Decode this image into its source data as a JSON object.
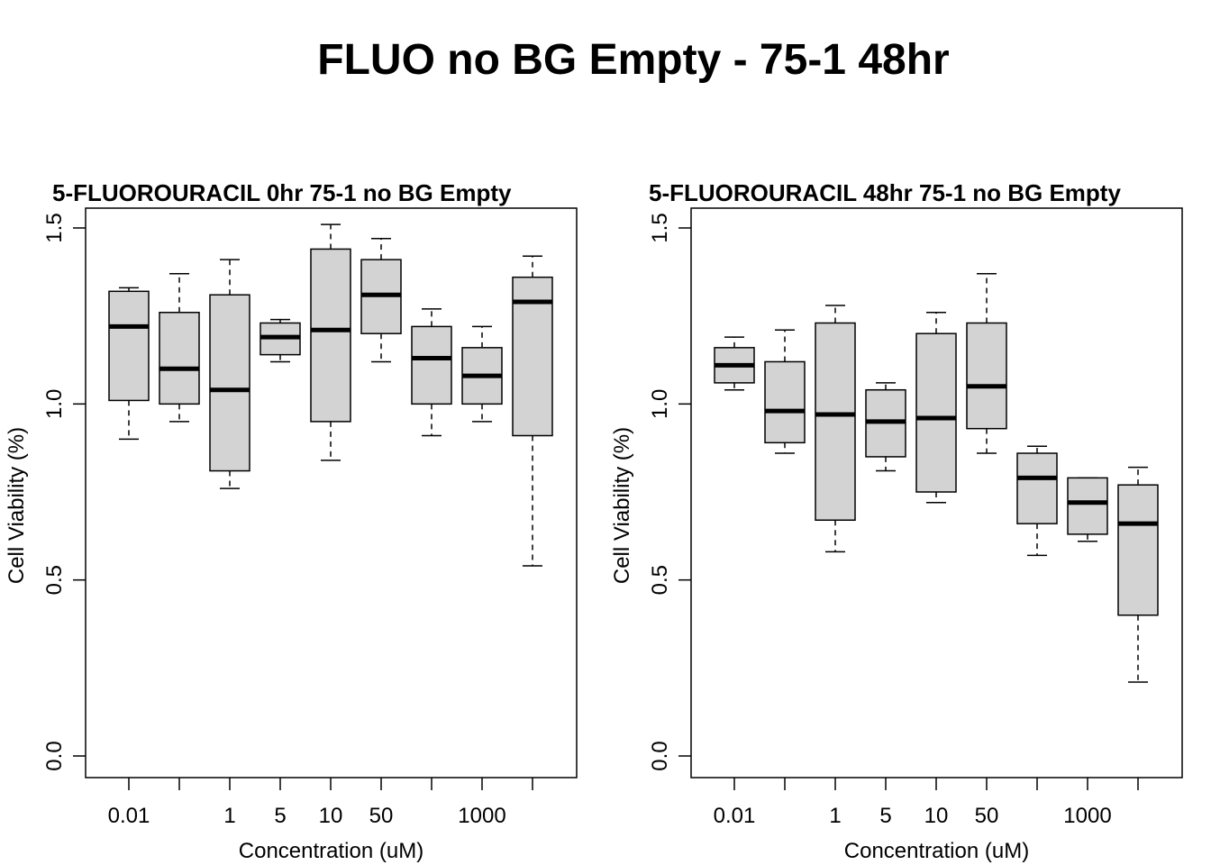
{
  "figure": {
    "title": "FLUO no BG Empty - 75-1 48hr"
  },
  "chart_data": [
    {
      "type": "box",
      "title": "5-FLUOROURACIL 0hr 75-1 no BG Empty",
      "xlabel": "Concentration (uM)",
      "ylabel": "Cell Viability (%)",
      "ylim": [
        0,
        1.5
      ],
      "yticks": [
        "0.0",
        "0.5",
        "1.0",
        "1.5"
      ],
      "categories": [
        "0.01",
        "",
        "1",
        "5",
        "10",
        "50",
        "",
        "1000",
        ""
      ],
      "grid": false,
      "boxes": [
        {
          "whisker_low": 0.9,
          "q1": 1.01,
          "median": 1.22,
          "q3": 1.32,
          "whisker_high": 1.33
        },
        {
          "whisker_low": 0.95,
          "q1": 1.0,
          "median": 1.1,
          "q3": 1.26,
          "whisker_high": 1.37
        },
        {
          "whisker_low": 0.76,
          "q1": 0.81,
          "median": 1.04,
          "q3": 1.31,
          "whisker_high": 1.41
        },
        {
          "whisker_low": 1.12,
          "q1": 1.14,
          "median": 1.19,
          "q3": 1.23,
          "whisker_high": 1.24
        },
        {
          "whisker_low": 0.84,
          "q1": 0.95,
          "median": 1.21,
          "q3": 1.44,
          "whisker_high": 1.51
        },
        {
          "whisker_low": 1.12,
          "q1": 1.2,
          "median": 1.31,
          "q3": 1.41,
          "whisker_high": 1.47
        },
        {
          "whisker_low": 0.91,
          "q1": 1.0,
          "median": 1.13,
          "q3": 1.22,
          "whisker_high": 1.27
        },
        {
          "whisker_low": 0.95,
          "q1": 1.0,
          "median": 1.08,
          "q3": 1.16,
          "whisker_high": 1.22
        },
        {
          "whisker_low": 0.54,
          "q1": 0.91,
          "median": 1.29,
          "q3": 1.36,
          "whisker_high": 1.42
        }
      ]
    },
    {
      "type": "box",
      "title": "5-FLUOROURACIL 48hr 75-1 no BG Empty",
      "xlabel": "Concentration (uM)",
      "ylabel": "Cell Viability (%)",
      "ylim": [
        0,
        1.5
      ],
      "yticks": [
        "0.0",
        "0.5",
        "1.0",
        "1.5"
      ],
      "categories": [
        "0.01",
        "",
        "1",
        "5",
        "10",
        "50",
        "",
        "1000",
        ""
      ],
      "grid": false,
      "boxes": [
        {
          "whisker_low": 1.04,
          "q1": 1.06,
          "median": 1.11,
          "q3": 1.16,
          "whisker_high": 1.19
        },
        {
          "whisker_low": 0.86,
          "q1": 0.89,
          "median": 0.98,
          "q3": 1.12,
          "whisker_high": 1.21
        },
        {
          "whisker_low": 0.58,
          "q1": 0.67,
          "median": 0.97,
          "q3": 1.23,
          "whisker_high": 1.28
        },
        {
          "whisker_low": 0.81,
          "q1": 0.85,
          "median": 0.95,
          "q3": 1.04,
          "whisker_high": 1.06
        },
        {
          "whisker_low": 0.72,
          "q1": 0.75,
          "median": 0.96,
          "q3": 1.2,
          "whisker_high": 1.26
        },
        {
          "whisker_low": 0.86,
          "q1": 0.93,
          "median": 1.05,
          "q3": 1.23,
          "whisker_high": 1.37
        },
        {
          "whisker_low": 0.57,
          "q1": 0.66,
          "median": 0.79,
          "q3": 0.86,
          "whisker_high": 0.88
        },
        {
          "whisker_low": 0.61,
          "q1": 0.63,
          "median": 0.72,
          "q3": 0.79,
          "whisker_high": 0.79
        },
        {
          "whisker_low": 0.21,
          "q1": 0.4,
          "median": 0.66,
          "q3": 0.77,
          "whisker_high": 0.82
        }
      ]
    }
  ],
  "style": {
    "box_fill": "#d3d3d3",
    "stroke": "#000000"
  }
}
